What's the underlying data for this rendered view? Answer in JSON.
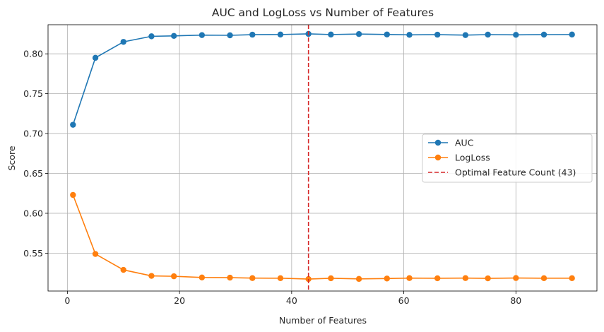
{
  "chart_data": {
    "type": "line",
    "title": "AUC and LogLoss vs Number of Features",
    "xlabel": "Number of Features",
    "ylabel": "Score",
    "xlim": [
      -3.45,
      94.45
    ],
    "ylim": [
      0.5025,
      0.8365
    ],
    "xticks": [
      0,
      20,
      40,
      60,
      80
    ],
    "yticks": [
      0.55,
      0.6,
      0.65,
      0.7,
      0.75,
      0.8
    ],
    "ytick_format_decimals": 2,
    "grid": true,
    "legend_position": "center-right",
    "x": [
      1,
      5,
      10,
      15,
      19,
      24,
      29,
      33,
      38,
      43,
      47,
      52,
      57,
      61,
      66,
      71,
      75,
      80,
      85,
      90
    ],
    "series": [
      {
        "name": "AUC",
        "color": "#1f77b4",
        "marker": "circle",
        "values": [
          0.711,
          0.795,
          0.815,
          0.822,
          0.8225,
          0.8235,
          0.8232,
          0.824,
          0.8242,
          0.825,
          0.8242,
          0.8248,
          0.8243,
          0.8238,
          0.824,
          0.8235,
          0.8241,
          0.8238,
          0.8241,
          0.8242
        ]
      },
      {
        "name": "LogLoss",
        "color": "#ff7f0e",
        "marker": "circle",
        "values": [
          0.623,
          0.549,
          0.529,
          0.5215,
          0.521,
          0.5195,
          0.5193,
          0.5187,
          0.5186,
          0.5175,
          0.5185,
          0.5177,
          0.5182,
          0.5187,
          0.5185,
          0.5187,
          0.5184,
          0.5188,
          0.5186,
          0.5186
        ]
      }
    ],
    "reference_lines": [
      {
        "orientation": "vertical",
        "x": 43,
        "label": "Optimal Feature Count (43)",
        "color": "#d62728",
        "style": "dashed"
      }
    ]
  }
}
